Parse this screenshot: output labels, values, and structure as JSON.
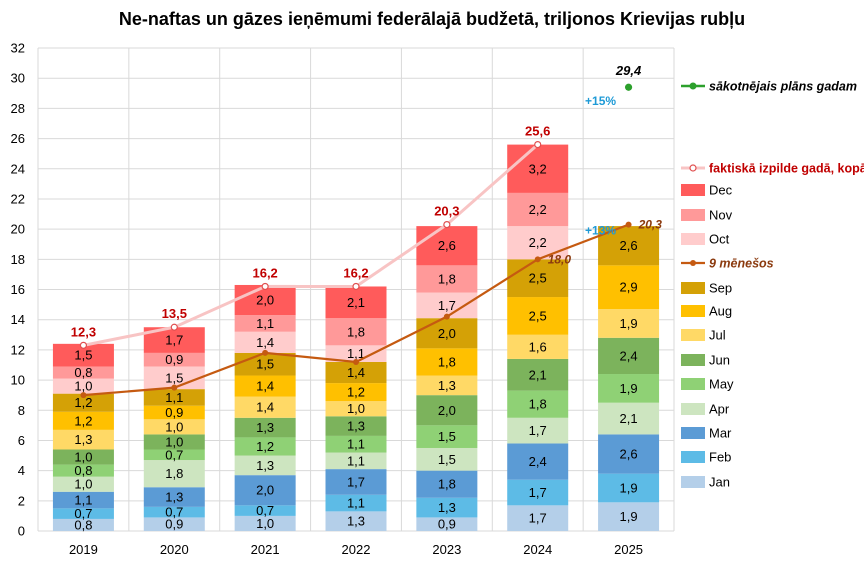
{
  "chart_data": {
    "type": "bar",
    "stacked": true,
    "title": "Ne-naftas un gāzes ieņēmumi federālajā budžetā, triljonos Krievijas rubļu",
    "categories": [
      "2019",
      "2020",
      "2021",
      "2022",
      "2023",
      "2024",
      "2025"
    ],
    "ylim": [
      0,
      32
    ],
    "ytick_step": 2,
    "grid": true,
    "legend_position": "right",
    "series": [
      {
        "name": "Jan",
        "color": "#b4cfe9",
        "values": [
          0.8,
          0.9,
          1.0,
          1.3,
          0.9,
          1.7,
          1.9
        ],
        "labels": [
          "0,8",
          "0,9",
          "1,0",
          "1,3",
          "0,9",
          "1,7",
          "1,9"
        ]
      },
      {
        "name": "Feb",
        "color": "#5dbbe6",
        "values": [
          0.7,
          0.7,
          0.7,
          1.1,
          1.3,
          1.7,
          1.9
        ],
        "labels": [
          "0,7",
          "0,7",
          "0,7",
          "1,1",
          "1,3",
          "1,7",
          "1,9"
        ]
      },
      {
        "name": "Mar",
        "color": "#5b9bd5",
        "values": [
          1.1,
          1.3,
          2.0,
          1.7,
          1.8,
          2.4,
          2.6
        ],
        "labels": [
          "1,1",
          "1,3",
          "2,0",
          "1,7",
          "1,8",
          "2,4",
          "2,6"
        ]
      },
      {
        "name": "Apr",
        "color": "#cde5c0",
        "values": [
          1.0,
          1.8,
          1.3,
          1.1,
          1.5,
          1.7,
          2.1
        ],
        "labels": [
          "1,0",
          "1,8",
          "1,3",
          "1,1",
          "1,5",
          "1,7",
          "2,1"
        ]
      },
      {
        "name": "May",
        "color": "#8fd175",
        "values": [
          0.8,
          0.7,
          1.2,
          1.1,
          1.5,
          1.8,
          1.9
        ],
        "labels": [
          "0,8",
          "0,7",
          "1,2",
          "1,1",
          "1,5",
          "1,8",
          "1,9"
        ]
      },
      {
        "name": "Jun",
        "color": "#7cb35c",
        "values": [
          1.0,
          1.0,
          1.3,
          1.3,
          2.0,
          2.1,
          2.4
        ],
        "labels": [
          "1,0",
          "1,0",
          "1,3",
          "1,3",
          "2,0",
          "2,1",
          "2,4"
        ]
      },
      {
        "name": "Jul",
        "color": "#ffd966",
        "values": [
          1.3,
          1.0,
          1.4,
          1.0,
          1.3,
          1.6,
          1.9
        ],
        "labels": [
          "1,3",
          "1,0",
          "1,4",
          "1,0",
          "1,3",
          "1,6",
          "1,9"
        ]
      },
      {
        "name": "Aug",
        "color": "#ffc000",
        "values": [
          1.2,
          0.9,
          1.4,
          1.2,
          1.8,
          2.5,
          2.9
        ],
        "labels": [
          "1,2",
          "0,9",
          "1,4",
          "1,2",
          "1,8",
          "2,5",
          "2,9"
        ]
      },
      {
        "name": "Sep",
        "color": "#d4a106",
        "values": [
          1.2,
          1.1,
          1.5,
          1.4,
          2.0,
          2.5,
          2.6
        ],
        "labels": [
          "1,2",
          "1,1",
          "1,5",
          "1,4",
          "2,0",
          "2,5",
          "2,6"
        ]
      },
      {
        "name": "Oct",
        "color": "#ffcccc",
        "values": [
          1.0,
          1.5,
          1.4,
          1.1,
          1.7,
          2.2,
          null
        ],
        "labels": [
          "1,0",
          "1,5",
          "1,4",
          "1,1",
          "1,7",
          "2,2",
          ""
        ]
      },
      {
        "name": "Nov",
        "color": "#ff9999",
        "values": [
          0.8,
          0.9,
          1.1,
          1.8,
          1.8,
          2.2,
          null
        ],
        "labels": [
          "0,8",
          "0,9",
          "1,1",
          "1,8",
          "1,8",
          "2,2",
          ""
        ]
      },
      {
        "name": "Dec",
        "color": "#ff5b5b",
        "values": [
          1.5,
          1.7,
          2.0,
          2.1,
          2.6,
          3.2,
          null
        ],
        "labels": [
          "1,5",
          "1,7",
          "2,0",
          "2,1",
          "2,6",
          "3,2",
          ""
        ]
      }
    ],
    "lines": {
      "annual_total": {
        "name": "faktiskā izpilde gadā, kopā",
        "color": "#f8c4c4",
        "marker_color": "#e05050",
        "values": [
          12.3,
          13.5,
          16.2,
          16.2,
          20.3,
          25.6
        ],
        "labels": [
          "12,3",
          "13,5",
          "16,2",
          "16,2",
          "20,3",
          "25,6"
        ]
      },
      "nine_months": {
        "name": "9 mēnešos",
        "color": "#c55a11",
        "values": [
          9.0,
          9.5,
          11.8,
          11.2,
          14.2,
          18.0,
          20.3
        ],
        "labels": [
          "",
          "",
          "",
          "",
          "",
          "18,0",
          "20,3"
        ]
      },
      "plan": {
        "name": "sākotnējais plāns gadam",
        "color": "#2ca02c",
        "category": "2025",
        "value": 29.4,
        "label": "29,4"
      }
    },
    "annotations": [
      {
        "text": "+15%",
        "category": "2025",
        "y": 28.5
      },
      {
        "text": "+13%",
        "category": "2025",
        "y": 19.9
      }
    ],
    "y_tick_labels": [
      "0",
      "2",
      "4",
      "6",
      "8",
      "10",
      "12",
      "14",
      "16",
      "18",
      "20",
      "22",
      "24",
      "26",
      "28",
      "30",
      "32"
    ]
  }
}
